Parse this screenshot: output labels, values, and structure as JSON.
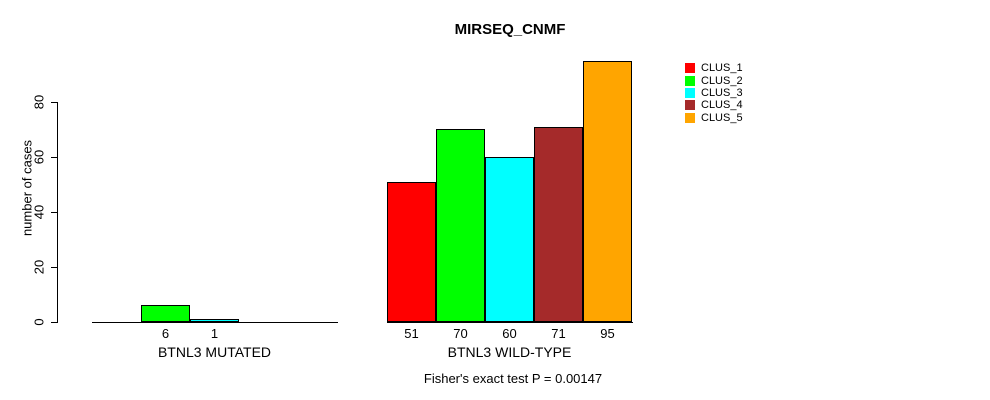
{
  "chart_data": {
    "type": "bar",
    "title": "MIRSEQ_CNMF",
    "ylabel": "number of cases",
    "xlabel": "",
    "ylim": [
      0,
      80
    ],
    "yticks": [
      0,
      20,
      40,
      60,
      80
    ],
    "grid": false,
    "legend_position": "right",
    "series": [
      {
        "name": "CLUS_1",
        "color": "#ff0000"
      },
      {
        "name": "CLUS_2",
        "color": "#00ff00"
      },
      {
        "name": "CLUS_3",
        "color": "#00ffff"
      },
      {
        "name": "CLUS_4",
        "color": "#a52a2a"
      },
      {
        "name": "CLUS_5",
        "color": "#ffa500"
      }
    ],
    "groups": [
      {
        "label": "BTNL3 MUTATED",
        "values": [
          0,
          6,
          1,
          0,
          0
        ],
        "bar_labels": [
          "",
          "6",
          "1",
          "",
          ""
        ]
      },
      {
        "label": "BTNL3 WILD-TYPE",
        "values": [
          51,
          70,
          60,
          71,
          95
        ],
        "bar_labels": [
          "51",
          "70",
          "60",
          "71",
          "95"
        ]
      }
    ],
    "caption": "Fisher's exact test P = 0.00147"
  }
}
